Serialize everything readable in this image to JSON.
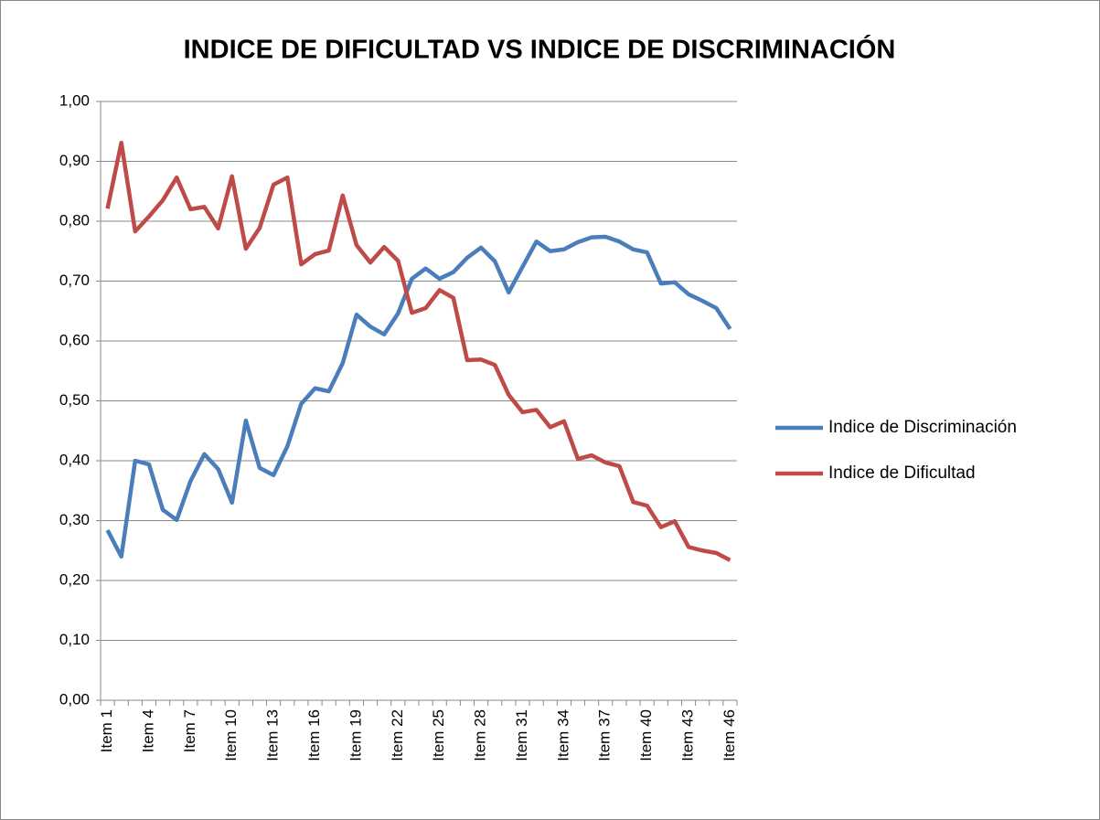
{
  "chart_data": {
    "type": "line",
    "title": "INDICE DE DIFICULTAD VS INDICE DE DISCRIMINACIÓN",
    "categories": [
      "Item 1",
      null,
      null,
      "Item 4",
      null,
      null,
      "Item 7",
      null,
      null,
      "Item 10",
      null,
      null,
      "Item 13",
      null,
      null,
      "Item 16",
      null,
      null,
      "Item 19",
      null,
      null,
      "Item 22",
      null,
      null,
      "Item 25",
      null,
      null,
      "Item 28",
      null,
      null,
      "Item 31",
      null,
      null,
      "Item 34",
      null,
      null,
      "Item 37",
      null,
      null,
      "Item 40",
      null,
      null,
      "Item 43",
      null,
      null,
      "Item 46"
    ],
    "series": [
      {
        "name": "Indice de Discriminación",
        "color": "#4a7ebb",
        "values": [
          0.284,
          0.24,
          0.4,
          0.394,
          0.318,
          0.301,
          0.366,
          0.411,
          0.386,
          0.33,
          0.467,
          0.388,
          0.376,
          0.424,
          0.495,
          0.521,
          0.516,
          0.563,
          0.644,
          0.624,
          0.611,
          0.646,
          0.704,
          0.721,
          0.704,
          0.715,
          0.739,
          0.756,
          0.733,
          0.681,
          0.724,
          0.766,
          0.75,
          0.753,
          0.765,
          0.773,
          0.774,
          0.766,
          0.753,
          0.748,
          0.696,
          0.698,
          0.678,
          0.667,
          0.655,
          0.62
        ]
      },
      {
        "name": "Indice de Dificultad",
        "color": "#be4b48",
        "values": [
          0.821,
          0.931,
          0.783,
          0.808,
          0.835,
          0.873,
          0.82,
          0.824,
          0.788,
          0.875,
          0.754,
          0.789,
          0.861,
          0.873,
          0.728,
          0.745,
          0.751,
          0.843,
          0.76,
          0.731,
          0.757,
          0.734,
          0.647,
          0.655,
          0.685,
          0.672,
          0.568,
          0.569,
          0.56,
          0.51,
          0.481,
          0.485,
          0.456,
          0.466,
          0.403,
          0.409,
          0.397,
          0.391,
          0.331,
          0.325,
          0.289,
          0.299,
          0.256,
          0.25,
          0.246,
          0.234
        ]
      }
    ],
    "ylim": [
      0,
      1
    ],
    "yticks": [
      {
        "value": 0,
        "label": "0,00"
      },
      {
        "value": 0.1,
        "label": "0,10"
      },
      {
        "value": 0.2,
        "label": "0,20"
      },
      {
        "value": 0.3,
        "label": "0,30"
      },
      {
        "value": 0.4,
        "label": "0,40"
      },
      {
        "value": 0.5,
        "label": "0,50"
      },
      {
        "value": 0.6,
        "label": "0,60"
      },
      {
        "value": 0.7,
        "label": "0,70"
      },
      {
        "value": 0.8,
        "label": "0,80"
      },
      {
        "value": 0.9,
        "label": "0,90"
      },
      {
        "value": 1,
        "label": "1,00"
      }
    ],
    "grid": true,
    "legend": "right"
  }
}
